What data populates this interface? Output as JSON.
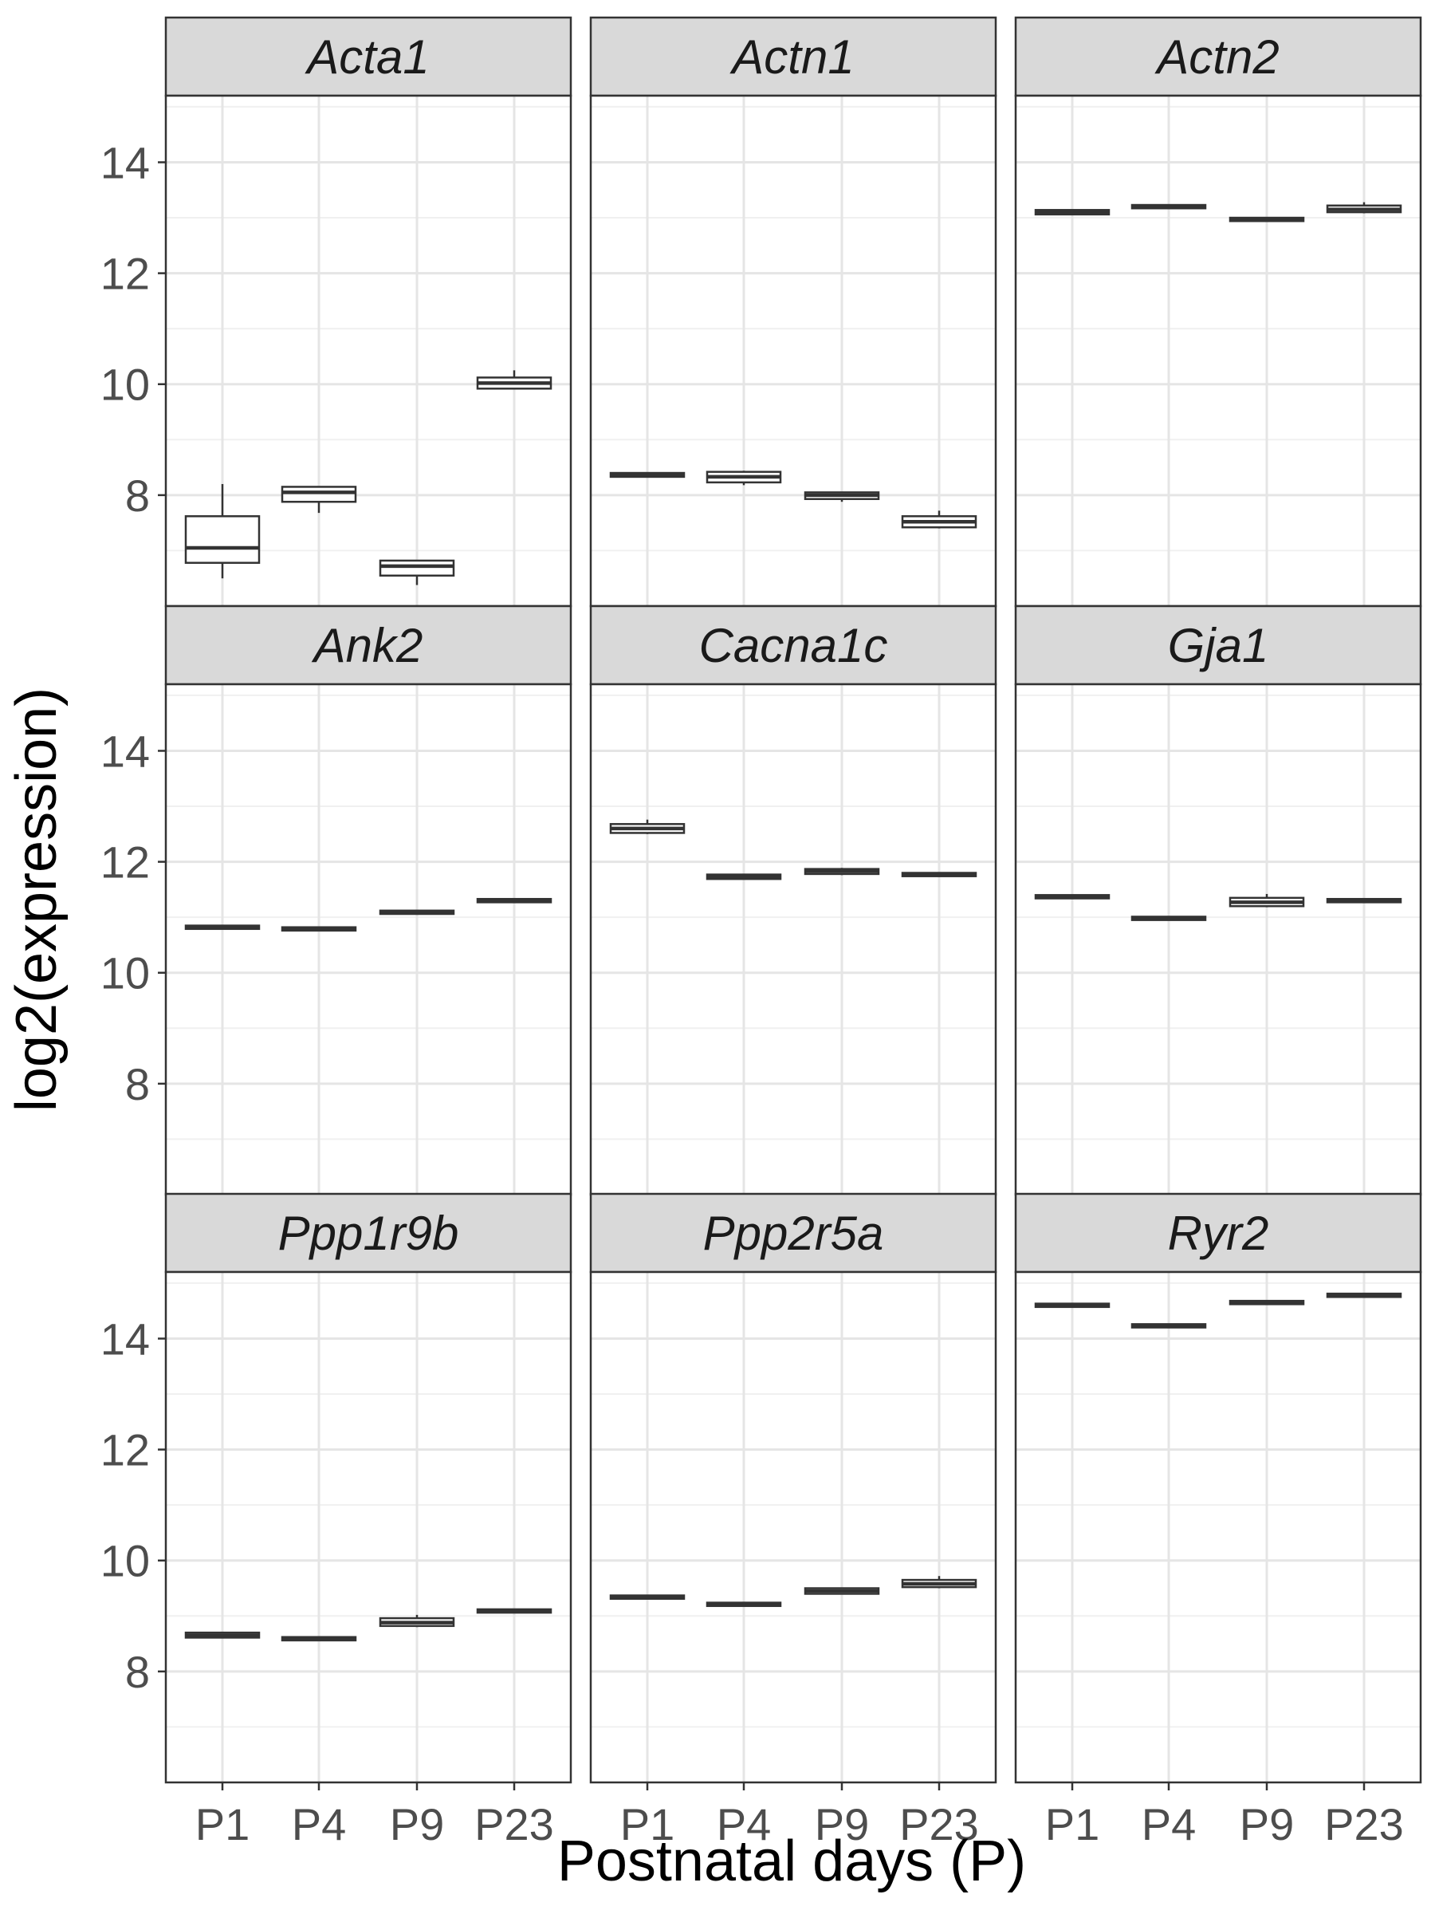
{
  "chart_data": {
    "type": "boxplot",
    "facet_layout": "3x3",
    "xlabel": "Postnatal days (P)",
    "ylabel": "log2(expression)",
    "categories": [
      "P1",
      "P4",
      "P9",
      "P23"
    ],
    "ylim": [
      6.0,
      15.2
    ],
    "yticks": [
      8,
      10,
      12,
      14
    ],
    "grid": true,
    "panels": [
      {
        "gene": "Acta1",
        "boxes": [
          {
            "category": "P1",
            "min": 6.5,
            "q1": 6.78,
            "median": 7.05,
            "q3": 7.62,
            "max": 8.2
          },
          {
            "category": "P4",
            "min": 7.68,
            "q1": 7.88,
            "median": 8.05,
            "q3": 8.15,
            "max": 8.15
          },
          {
            "category": "P9",
            "min": 6.38,
            "q1": 6.55,
            "median": 6.72,
            "q3": 6.82,
            "max": 6.82
          },
          {
            "category": "P23",
            "min": 9.92,
            "q1": 9.92,
            "median": 10.02,
            "q3": 10.12,
            "max": 10.25
          }
        ]
      },
      {
        "gene": "Actn1",
        "boxes": [
          {
            "category": "P1",
            "min": 8.33,
            "q1": 8.33,
            "median": 8.37,
            "q3": 8.4,
            "max": 8.4
          },
          {
            "category": "P4",
            "min": 8.18,
            "q1": 8.23,
            "median": 8.33,
            "q3": 8.42,
            "max": 8.44
          },
          {
            "category": "P9",
            "min": 7.88,
            "q1": 7.93,
            "median": 8.0,
            "q3": 8.05,
            "max": 8.05
          },
          {
            "category": "P23",
            "min": 7.4,
            "q1": 7.42,
            "median": 7.52,
            "q3": 7.62,
            "max": 7.72
          }
        ]
      },
      {
        "gene": "Actn2",
        "boxes": [
          {
            "category": "P1",
            "min": 13.06,
            "q1": 13.06,
            "median": 13.1,
            "q3": 13.14,
            "max": 13.14
          },
          {
            "category": "P4",
            "min": 13.17,
            "q1": 13.17,
            "median": 13.2,
            "q3": 13.23,
            "max": 13.23
          },
          {
            "category": "P9",
            "min": 12.94,
            "q1": 12.94,
            "median": 12.97,
            "q3": 13.0,
            "max": 13.0
          },
          {
            "category": "P23",
            "min": 13.08,
            "q1": 13.1,
            "median": 13.15,
            "q3": 13.22,
            "max": 13.28
          }
        ]
      },
      {
        "gene": "Ank2",
        "boxes": [
          {
            "category": "P1",
            "min": 10.79,
            "q1": 10.79,
            "median": 10.82,
            "q3": 10.85,
            "max": 10.85
          },
          {
            "category": "P4",
            "min": 10.76,
            "q1": 10.76,
            "median": 10.79,
            "q3": 10.82,
            "max": 10.82
          },
          {
            "category": "P9",
            "min": 11.06,
            "q1": 11.06,
            "median": 11.09,
            "q3": 11.12,
            "max": 11.12
          },
          {
            "category": "P23",
            "min": 11.27,
            "q1": 11.27,
            "median": 11.3,
            "q3": 11.33,
            "max": 11.33
          }
        ]
      },
      {
        "gene": "Cacna1c",
        "boxes": [
          {
            "category": "P1",
            "min": 12.5,
            "q1": 12.52,
            "median": 12.6,
            "q3": 12.68,
            "max": 12.76
          },
          {
            "category": "P4",
            "min": 11.69,
            "q1": 11.69,
            "median": 11.73,
            "q3": 11.77,
            "max": 11.77
          },
          {
            "category": "P9",
            "min": 11.76,
            "q1": 11.78,
            "median": 11.83,
            "q3": 11.87,
            "max": 11.89
          },
          {
            "category": "P23",
            "min": 11.74,
            "q1": 11.74,
            "median": 11.77,
            "q3": 11.8,
            "max": 11.8
          }
        ]
      },
      {
        "gene": "Gja1",
        "boxes": [
          {
            "category": "P1",
            "min": 11.34,
            "q1": 11.34,
            "median": 11.37,
            "q3": 11.4,
            "max": 11.4
          },
          {
            "category": "P4",
            "min": 10.95,
            "q1": 10.95,
            "median": 10.98,
            "q3": 11.01,
            "max": 11.01
          },
          {
            "category": "P9",
            "min": 11.18,
            "q1": 11.2,
            "median": 11.27,
            "q3": 11.35,
            "max": 11.42
          },
          {
            "category": "P23",
            "min": 11.27,
            "q1": 11.27,
            "median": 11.3,
            "q3": 11.33,
            "max": 11.33
          }
        ]
      },
      {
        "gene": "Ppp1r9b",
        "boxes": [
          {
            "category": "P1",
            "min": 8.61,
            "q1": 8.61,
            "median": 8.65,
            "q3": 8.7,
            "max": 8.7
          },
          {
            "category": "P4",
            "min": 8.56,
            "q1": 8.56,
            "median": 8.59,
            "q3": 8.62,
            "max": 8.62
          },
          {
            "category": "P9",
            "min": 8.8,
            "q1": 8.82,
            "median": 8.88,
            "q3": 8.96,
            "max": 9.02
          },
          {
            "category": "P23",
            "min": 9.06,
            "q1": 9.06,
            "median": 9.09,
            "q3": 9.12,
            "max": 9.12
          }
        ]
      },
      {
        "gene": "Ppp2r5a",
        "boxes": [
          {
            "category": "P1",
            "min": 9.31,
            "q1": 9.31,
            "median": 9.34,
            "q3": 9.37,
            "max": 9.37
          },
          {
            "category": "P4",
            "min": 9.18,
            "q1": 9.18,
            "median": 9.21,
            "q3": 9.24,
            "max": 9.24
          },
          {
            "category": "P9",
            "min": 9.4,
            "q1": 9.4,
            "median": 9.45,
            "q3": 9.5,
            "max": 9.5
          },
          {
            "category": "P23",
            "min": 9.5,
            "q1": 9.52,
            "median": 9.58,
            "q3": 9.65,
            "max": 9.72
          }
        ]
      },
      {
        "gene": "Ryr2",
        "boxes": [
          {
            "category": "P1",
            "min": 14.57,
            "q1": 14.57,
            "median": 14.6,
            "q3": 14.63,
            "max": 14.63
          },
          {
            "category": "P4",
            "min": 14.2,
            "q1": 14.2,
            "median": 14.23,
            "q3": 14.26,
            "max": 14.26
          },
          {
            "category": "P9",
            "min": 14.62,
            "q1": 14.62,
            "median": 14.65,
            "q3": 14.68,
            "max": 14.68
          },
          {
            "category": "P23",
            "min": 14.75,
            "q1": 14.75,
            "median": 14.78,
            "q3": 14.81,
            "max": 14.81
          }
        ]
      }
    ]
  }
}
